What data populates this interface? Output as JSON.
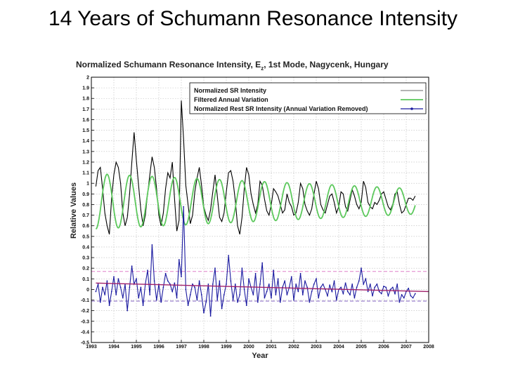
{
  "slide": {
    "title": "14 Years of Schumann Resonance Intensity"
  },
  "chart_data": {
    "type": "line",
    "title_main": "Normalized Schumann Resonance Intensity, E",
    "title_sub": "z",
    "title_tail": ", 1st Mode, Nagycenk, Hungary",
    "xlabel": "Year",
    "ylabel": "Relative Values",
    "xlim": [
      1993,
      2008
    ],
    "ylim": [
      -0.5,
      2
    ],
    "x_ticks": [
      "1993",
      "1994",
      "1995",
      "1996",
      "1997",
      "1998",
      "1999",
      "2000",
      "2001",
      "2002",
      "2003",
      "2004",
      "2005",
      "2006",
      "2007",
      "2008"
    ],
    "y_ticks": [
      "-0.5",
      "-0.4",
      "-0.3",
      "-0.2",
      "-0.1",
      "0",
      "0.1",
      "0.2",
      "0.3",
      "0.4",
      "0.5",
      "0.6",
      "0.7",
      "0.8",
      "0.9",
      "1",
      "1.1",
      "1.2",
      "1.3",
      "1.4",
      "1.5",
      "1.6",
      "1.7",
      "1.8",
      "1.9",
      "2"
    ],
    "grid": true,
    "legend_position": "top-right",
    "colors": {
      "intensity": "#000000",
      "annual": "#5cc85c",
      "rest": "#1a1aa0",
      "trend": "#a0206a",
      "upper_bound": "#e080c8",
      "lower_bound": "#8060c0",
      "grid": "#bbbbbb"
    },
    "reference_lines": {
      "upper": 0.17,
      "lower": -0.11
    },
    "trend_line": {
      "x": [
        1993.2,
        2008.0
      ],
      "y": [
        0.06,
        -0.02
      ]
    },
    "series": [
      {
        "name": "Normalized SR Intensity",
        "key": "intensity",
        "x": [
          1993.2,
          1993.3,
          1993.4,
          1993.5,
          1993.6,
          1993.7,
          1993.8,
          1993.9,
          1994.0,
          1994.1,
          1994.2,
          1994.3,
          1994.4,
          1994.5,
          1994.6,
          1994.7,
          1994.8,
          1994.9,
          1995.0,
          1995.1,
          1995.2,
          1995.3,
          1995.4,
          1995.5,
          1995.6,
          1995.7,
          1995.8,
          1995.9,
          1996.0,
          1996.1,
          1996.2,
          1996.3,
          1996.4,
          1996.5,
          1996.6,
          1996.7,
          1996.8,
          1996.9,
          1997.0,
          1997.1,
          1997.2,
          1997.3,
          1997.4,
          1997.5,
          1997.6,
          1997.7,
          1997.8,
          1997.9,
          1998.0,
          1998.1,
          1998.2,
          1998.3,
          1998.4,
          1998.5,
          1998.6,
          1998.7,
          1998.8,
          1998.9,
          1999.0,
          1999.1,
          1999.2,
          1999.3,
          1999.4,
          1999.5,
          1999.6,
          1999.7,
          1999.8,
          1999.9,
          2000.0,
          2000.1,
          2000.2,
          2000.3,
          2000.4,
          2000.5,
          2000.6,
          2000.7,
          2000.8,
          2000.9,
          2001.0,
          2001.1,
          2001.2,
          2001.3,
          2001.4,
          2001.5,
          2001.6,
          2001.7,
          2001.8,
          2001.9,
          2002.0,
          2002.1,
          2002.2,
          2002.3,
          2002.4,
          2002.5,
          2002.6,
          2002.7,
          2002.8,
          2002.9,
          2003.0,
          2003.1,
          2003.2,
          2003.3,
          2003.4,
          2003.5,
          2003.6,
          2003.7,
          2003.8,
          2003.9,
          2004.0,
          2004.1,
          2004.2,
          2004.3,
          2004.4,
          2004.5,
          2004.6,
          2004.7,
          2004.8,
          2004.9,
          2005.0,
          2005.1,
          2005.2,
          2005.3,
          2005.4,
          2005.5,
          2005.6,
          2005.7,
          2005.8,
          2005.9,
          2006.0,
          2006.1,
          2006.2,
          2006.3,
          2006.4,
          2006.5,
          2006.6,
          2006.7,
          2006.8,
          2006.9,
          2007.0,
          2007.1,
          2007.2,
          2007.3,
          2007.4
        ],
        "y": [
          0.97,
          1.12,
          1.15,
          0.95,
          0.72,
          0.6,
          0.52,
          0.86,
          1.08,
          1.2,
          1.15,
          1.0,
          0.72,
          0.6,
          0.68,
          0.9,
          1.2,
          1.48,
          1.22,
          0.98,
          0.75,
          0.6,
          0.7,
          0.9,
          1.08,
          1.25,
          1.15,
          0.95,
          0.7,
          0.6,
          0.72,
          0.95,
          1.1,
          1.05,
          1.2,
          0.85,
          0.55,
          0.65,
          1.78,
          1.42,
          0.98,
          0.8,
          0.62,
          0.7,
          0.92,
          1.05,
          1.15,
          0.98,
          0.78,
          0.7,
          0.65,
          0.75,
          0.92,
          1.08,
          0.88,
          0.68,
          0.64,
          0.72,
          0.92,
          1.1,
          1.12,
          1.02,
          0.84,
          0.6,
          0.52,
          0.68,
          0.95,
          1.15,
          1.08,
          0.9,
          0.8,
          0.72,
          0.8,
          1.02,
          0.98,
          0.85,
          0.74,
          0.7,
          0.8,
          0.95,
          0.92,
          0.88,
          0.8,
          0.72,
          0.75,
          0.9,
          0.82,
          0.78,
          0.7,
          0.72,
          0.82,
          1.0,
          0.95,
          0.8,
          0.74,
          0.7,
          0.76,
          0.9,
          1.02,
          0.95,
          0.8,
          0.75,
          0.72,
          0.8,
          0.88,
          0.9,
          0.82,
          0.72,
          0.78,
          0.92,
          0.9,
          0.78,
          0.74,
          0.84,
          0.94,
          0.88,
          0.8,
          0.76,
          0.82,
          1.02,
          0.96,
          0.82,
          0.78,
          0.76,
          0.82,
          0.8,
          0.84,
          0.9,
          0.92,
          0.85,
          0.78,
          0.75,
          0.8,
          0.9,
          0.92,
          0.8,
          0.72,
          0.74,
          0.8,
          0.86,
          0.86,
          0.84,
          0.88
        ]
      },
      {
        "name": "Filtered Annual Variation",
        "key": "annual",
        "x0": 1993.2,
        "x1": 2007.4,
        "mean": 0.83,
        "amplitude": [
          0.26,
          0.12
        ],
        "period": 1.0,
        "phase": 1993.45
      },
      {
        "name": "Normalized Rest SR Intensity (Annual Variation Removed)",
        "key": "rest",
        "x": [
          1993.2,
          1993.3,
          1993.4,
          1993.5,
          1993.6,
          1993.7,
          1993.8,
          1993.9,
          1994.0,
          1994.1,
          1994.2,
          1994.3,
          1994.4,
          1994.5,
          1994.6,
          1994.7,
          1994.8,
          1994.9,
          1995.0,
          1995.1,
          1995.2,
          1995.3,
          1995.4,
          1995.5,
          1995.6,
          1995.7,
          1995.8,
          1995.9,
          1996.0,
          1996.1,
          1996.2,
          1996.3,
          1996.4,
          1996.5,
          1996.6,
          1996.7,
          1996.8,
          1996.9,
          1997.0,
          1997.1,
          1997.2,
          1997.3,
          1997.4,
          1997.5,
          1997.6,
          1997.7,
          1997.8,
          1997.9,
          1998.0,
          1998.1,
          1998.2,
          1998.3,
          1998.4,
          1998.5,
          1998.6,
          1998.7,
          1998.8,
          1998.9,
          1999.0,
          1999.1,
          1999.2,
          1999.3,
          1999.4,
          1999.5,
          1999.6,
          1999.7,
          1999.8,
          1999.9,
          2000.0,
          2000.1,
          2000.2,
          2000.3,
          2000.4,
          2000.5,
          2000.6,
          2000.7,
          2000.8,
          2000.9,
          2001.0,
          2001.1,
          2001.2,
          2001.3,
          2001.4,
          2001.5,
          2001.6,
          2001.7,
          2001.8,
          2001.9,
          2002.0,
          2002.1,
          2002.2,
          2002.3,
          2002.4,
          2002.5,
          2002.6,
          2002.7,
          2002.8,
          2002.9,
          2003.0,
          2003.1,
          2003.2,
          2003.3,
          2003.4,
          2003.5,
          2003.6,
          2003.7,
          2003.8,
          2003.9,
          2004.0,
          2004.1,
          2004.2,
          2004.3,
          2004.4,
          2004.5,
          2004.6,
          2004.7,
          2004.8,
          2004.9,
          2005.0,
          2005.1,
          2005.2,
          2005.3,
          2005.4,
          2005.5,
          2005.6,
          2005.7,
          2005.8,
          2005.9,
          2006.0,
          2006.1,
          2006.2,
          2006.3,
          2006.4,
          2006.5,
          2006.6,
          2006.7,
          2006.8,
          2006.9,
          2007.0,
          2007.1,
          2007.2,
          2007.3,
          2007.4
        ],
        "y": [
          -0.02,
          0.05,
          -0.12,
          0.02,
          -0.05,
          0.08,
          -0.15,
          -0.02,
          0.12,
          -0.05,
          0.1,
          0.02,
          -0.08,
          0.05,
          -0.2,
          0.02,
          0.22,
          0.05,
          0.1,
          -0.08,
          0.02,
          -0.15,
          0.05,
          0.18,
          -0.05,
          0.42,
          0.08,
          -0.1,
          0.05,
          -0.12,
          0.02,
          0.15,
          0.08,
          0.05,
          -0.02,
          0.06,
          -0.08,
          0.28,
          0.12,
          0.78,
          0.0,
          -0.15,
          -0.05,
          0.05,
          0.02,
          -0.1,
          0.08,
          -0.05,
          -0.22,
          -0.12,
          0.05,
          -0.25,
          0.05,
          0.2,
          -0.1,
          0.08,
          -0.18,
          -0.05,
          0.05,
          0.32,
          0.08,
          -0.1,
          0.05,
          -0.12,
          -0.05,
          0.2,
          0.0,
          -0.15,
          0.1,
          0.02,
          -0.05,
          0.15,
          -0.12,
          0.05,
          0.25,
          -0.08,
          -0.02,
          0.05,
          -0.08,
          0.18,
          -0.05,
          0.1,
          -0.12,
          0.02,
          0.08,
          -0.05,
          0.02,
          0.12,
          -0.1,
          0.05,
          -0.02,
          0.15,
          -0.05,
          0.08,
          0.02,
          -0.12,
          -0.02,
          0.05,
          0.1,
          -0.08,
          0.02,
          0.05,
          0.0,
          -0.06,
          0.04,
          -0.02,
          0.08,
          -0.1,
          0.0,
          0.02,
          -0.04,
          0.06,
          -0.02,
          -0.05,
          0.05,
          -0.08,
          0.02,
          0.08,
          0.2,
          0.05,
          0.1,
          -0.02,
          0.05,
          -0.06,
          0.02,
          0.05,
          -0.02,
          -0.04,
          0.03,
          0.02,
          -0.06,
          0.0,
          0.02,
          -0.04,
          0.05,
          -0.12,
          -0.05,
          -0.08,
          -0.02,
          0.01,
          -0.06,
          -0.08,
          -0.04
        ]
      }
    ]
  }
}
